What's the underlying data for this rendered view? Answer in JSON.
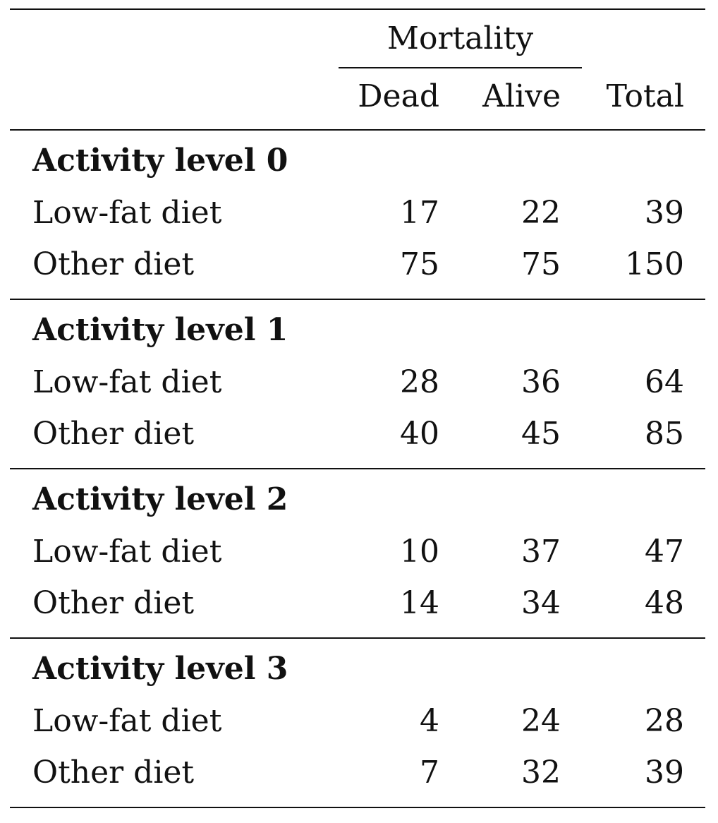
{
  "header": {
    "spanner": "Mortality",
    "columns": [
      "Dead",
      "Alive",
      "Total"
    ]
  },
  "groups": [
    {
      "title": "Activity level 0",
      "rows": [
        {
          "label": "Low-fat diet",
          "dead": "17",
          "alive": "22",
          "total": "39"
        },
        {
          "label": "Other diet",
          "dead": "75",
          "alive": "75",
          "total": "150"
        }
      ]
    },
    {
      "title": "Activity level 1",
      "rows": [
        {
          "label": "Low-fat diet",
          "dead": "28",
          "alive": "36",
          "total": "64"
        },
        {
          "label": "Other diet",
          "dead": "40",
          "alive": "45",
          "total": "85"
        }
      ]
    },
    {
      "title": "Activity level 2",
      "rows": [
        {
          "label": "Low-fat diet",
          "dead": "10",
          "alive": "37",
          "total": "47"
        },
        {
          "label": "Other diet",
          "dead": "14",
          "alive": "34",
          "total": "48"
        }
      ]
    },
    {
      "title": "Activity level 3",
      "rows": [
        {
          "label": "Low-fat diet",
          "dead": "4",
          "alive": "24",
          "total": "28"
        },
        {
          "label": "Other diet",
          "dead": "7",
          "alive": "32",
          "total": "39"
        }
      ]
    }
  ]
}
